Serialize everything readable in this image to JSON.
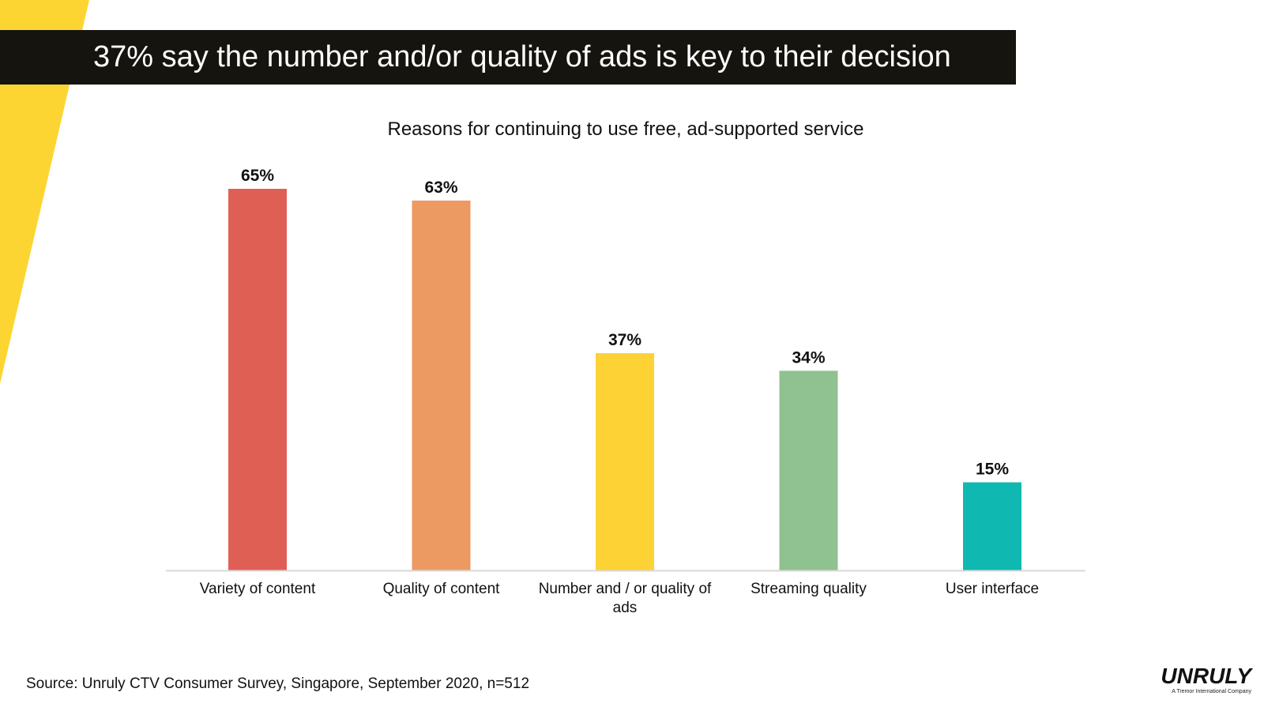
{
  "header": {
    "title": "37% say the number and/or quality of ads is key to their decision"
  },
  "chart_data": {
    "type": "bar",
    "title": "Reasons for continuing to use free, ad-supported service",
    "categories": [
      "Variety of content",
      "Quality of content",
      "Number and / or quality of ads",
      "Streaming quality",
      "User interface"
    ],
    "values": [
      65,
      63,
      37,
      34,
      15
    ],
    "value_labels": [
      "65%",
      "63%",
      "37%",
      "34%",
      "15%"
    ],
    "colors": [
      "#e05f55",
      "#ec9a62",
      "#fcd234",
      "#90c190",
      "#0fb8b0"
    ],
    "ylim": [
      0,
      65
    ],
    "xlabel": "",
    "ylabel": "",
    "grid": false
  },
  "footer": {
    "source": "Source: Unruly CTV Consumer Survey, Singapore, September 2020, n=512"
  },
  "logo": {
    "wordmark": "UNRULY",
    "tagline": "A Tremor International Company"
  },
  "theme": {
    "accent": "#fcd234",
    "banner": "#15140f"
  }
}
